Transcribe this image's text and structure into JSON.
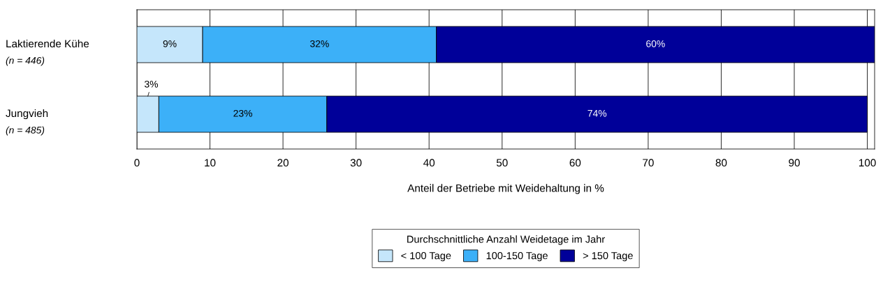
{
  "chart_data": {
    "type": "bar",
    "orientation": "horizontal",
    "stacked": true,
    "categories": [
      "Laktierende Kühe\n(n = 446)",
      "Jungvieh\n(n = 485)"
    ],
    "series": [
      {
        "name": "< 100 Tage",
        "color": "#c5e6fb",
        "values": [
          9,
          3
        ],
        "value_labels": [
          "9%",
          "3%"
        ]
      },
      {
        "name": "100-150 Tage",
        "color": "#3cb0f8",
        "values": [
          32,
          23
        ],
        "value_labels": [
          "32%",
          "23%"
        ]
      },
      {
        "name": "> 150 Tage",
        "color": "#000099",
        "values": [
          60,
          74
        ],
        "value_labels": [
          "60%",
          "74%"
        ]
      }
    ],
    "xlabel": "Anteil der Betriebe mit Weidehaltung in %",
    "legend_title": "Durchschnittliche Anzahl Weidetage im Jahr",
    "legend": "bottom",
    "xlim": [
      0,
      101
    ],
    "xticks": [
      0,
      10,
      20,
      30,
      40,
      50,
      60,
      70,
      80,
      90,
      100
    ],
    "grid": "x"
  }
}
